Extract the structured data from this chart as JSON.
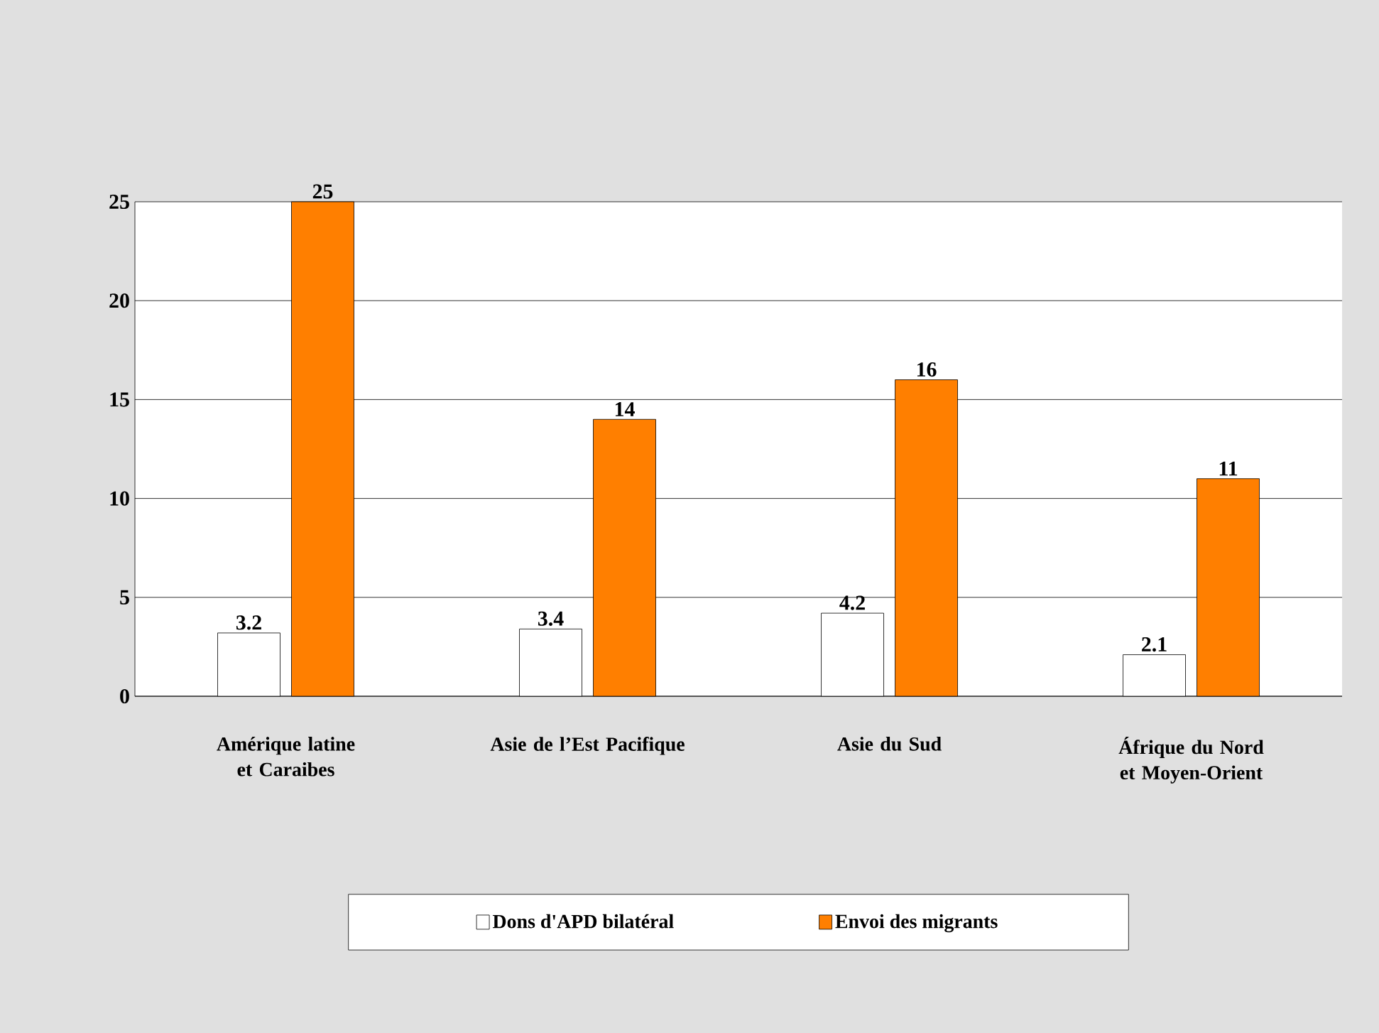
{
  "chart_data": {
    "type": "bar",
    "categories": [
      "Amérique latine et Caraibes",
      "Asie de l’Est Pacifique",
      "Asie du Sud",
      "Áfrique du Nord et Moyen-Orient"
    ],
    "series": [
      {
        "name": "Dons d'APD bilatéral",
        "color": "#ffffff",
        "values": [
          3.2,
          3.4,
          4.2,
          2.1
        ]
      },
      {
        "name": "Envoi des migrants",
        "color": "#ff7f00",
        "values": [
          25,
          14,
          16,
          11
        ]
      }
    ],
    "ylim": [
      0,
      25
    ],
    "yticks": [
      0,
      5,
      10,
      15,
      20,
      25
    ],
    "grid": "y",
    "legend": "bottom",
    "data_labels": true
  }
}
